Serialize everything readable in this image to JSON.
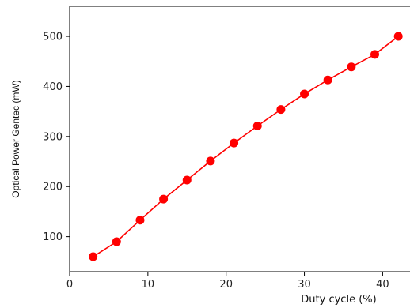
{
  "chart_data": {
    "type": "line",
    "title": "",
    "xlabel": "Duty cycle (%)",
    "ylabel": "Optical Power Gentec (mW)",
    "xlim": [
      0,
      43.5
    ],
    "ylim": [
      30,
      560
    ],
    "xticks": [
      0,
      10,
      20,
      30,
      40
    ],
    "yticks": [
      100,
      200,
      300,
      400,
      500
    ],
    "grid": false,
    "series": [
      {
        "color": "#ff0000",
        "marker": "circle",
        "x": [
          3,
          6,
          9,
          12,
          15,
          18,
          21,
          24,
          27,
          30,
          33,
          36,
          39,
          42
        ],
        "y": [
          60,
          90,
          133,
          175,
          213,
          251,
          287,
          321,
          354,
          385,
          413,
          439,
          464,
          500
        ]
      }
    ]
  }
}
